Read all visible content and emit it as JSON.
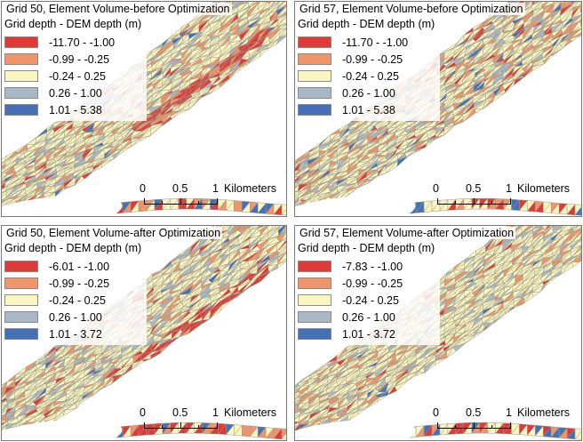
{
  "colors": {
    "bin1": "#e03a36",
    "bin2": "#f0956a",
    "bin3": "#fbf5c0",
    "bin4": "#a9b8c6",
    "bin5": "#4470b8",
    "edge": "#9a9a8a",
    "background": "#ffffff"
  },
  "panels": [
    {
      "title": "Grid 50, Element Volume-before Optimization",
      "legend_title": "Grid depth - DEM depth (m)",
      "legend_items": [
        "-11.70 - -1.00",
        "-0.99 - -0.25",
        "-0.24 - 0.25",
        "0.26 - 1.00",
        "1.01 - 5.38"
      ],
      "scalebar": {
        "labels": [
          "0",
          "0.5",
          "1"
        ],
        "unit": "Kilometers"
      }
    },
    {
      "title": "Grid 57, Element Volume-before Optimization",
      "legend_title": "Grid depth - DEM depth (m)",
      "legend_items": [
        "-11.70 - -1.00",
        "-0.99 - -0.25",
        "-0.24 - 0.25",
        "0.26 - 1.00",
        "1.01 - 5.38"
      ],
      "scalebar": {
        "labels": [
          "0",
          "0.5",
          "1"
        ],
        "unit": "Kilometers"
      }
    },
    {
      "title": "Grid 50, Element Volume-after Optimization",
      "legend_title": "Grid depth - DEM depth (m)",
      "legend_items": [
        "-6.01 - -1.00",
        "-0.99 - -0.25",
        "-0.24 - 0.25",
        "0.26 - 1.00",
        "1.01 - 3.72"
      ],
      "scalebar": {
        "labels": [
          "0",
          "0.5",
          "1"
        ],
        "unit": "Kilometers"
      }
    },
    {
      "title": "Grid 57, Element Volume-after Optimization",
      "legend_title": "Grid depth - DEM depth (m)",
      "legend_items": [
        "-7.83 - -1.00",
        "-0.99 - -0.25",
        "-0.24 - 0.25",
        "0.26 - 1.00",
        "1.01 - 3.72"
      ],
      "scalebar": {
        "labels": [
          "0",
          "0.5",
          "1"
        ],
        "unit": "Kilometers"
      }
    }
  ]
}
